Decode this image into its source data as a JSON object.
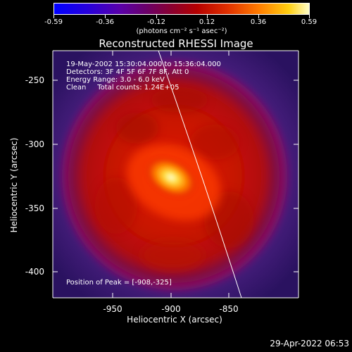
{
  "colorbar": {
    "tick_labels": [
      "-0.59",
      "-0.36",
      "-0.12",
      "0.12",
      "0.36",
      "0.59"
    ],
    "unit_label": "(photons cm⁻² s⁻¹ asec⁻²)"
  },
  "title": "Reconstructed RHESSI Image",
  "info": {
    "line1": "19-May-2002 15:30:04.000 to 15:36:04.000",
    "line2": "Detectors: 3F 4F 5F 6F 7F 8F, Att 0",
    "line3": "Energy Range: 3.0 - 6.0 keV",
    "line4": "Clean     Total counts: 1.24E+05",
    "peak": "Position of Peak = [-908,-325]"
  },
  "axes": {
    "xlabel": "Heliocentric X (arcsec)",
    "ylabel": "Heliocentric Y (arcsec)",
    "xticks": [
      "-950",
      "-900",
      "-850"
    ],
    "yticks": [
      "-250",
      "-300",
      "-350",
      "-400"
    ]
  },
  "timestamp": "29-Apr-2022 06:53",
  "colors": {
    "background": "#000000",
    "text": "#ffffff",
    "frame_fill": "#3a1870",
    "limb_line": "#ffffff"
  }
}
